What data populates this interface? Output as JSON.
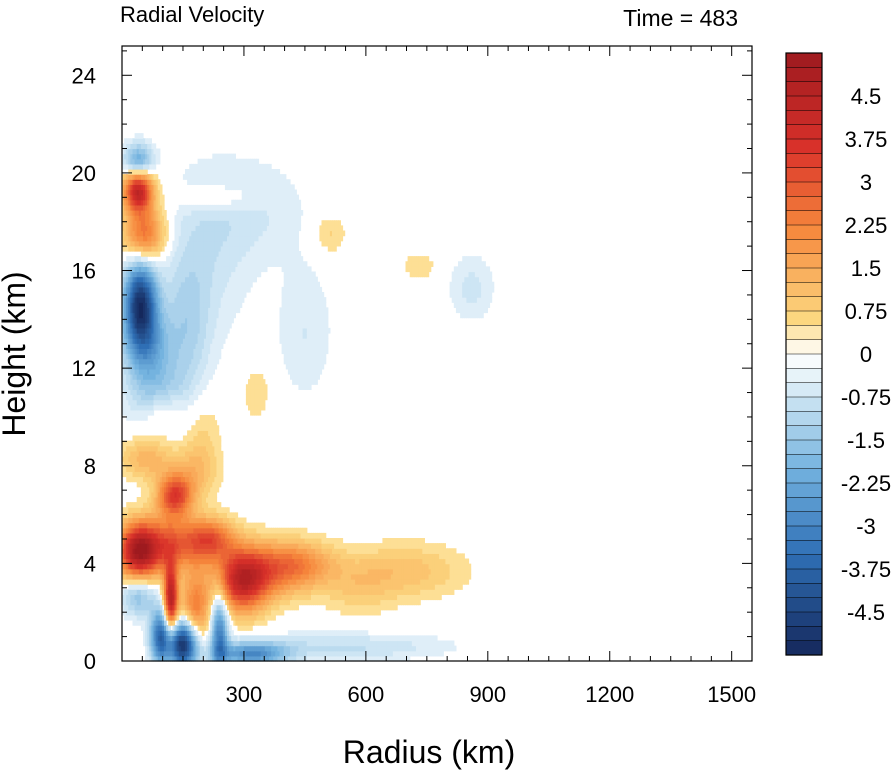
{
  "chart_data": {
    "type": "heatmap",
    "title_left": "Radial Velocity",
    "title_right": "Time = 483",
    "xlabel": "Radius (km)",
    "ylabel": "Height (km)",
    "xlim": [
      0,
      1550
    ],
    "ylim": [
      0,
      25.2
    ],
    "x_ticks": [
      300,
      600,
      900,
      1200,
      1500
    ],
    "y_ticks": [
      0,
      4,
      8,
      12,
      16,
      20,
      24
    ],
    "grid": false,
    "colorbar": {
      "min": -5.25,
      "max": 5.25,
      "step": 0.25,
      "labels": [
        "4.5",
        "3.75",
        "3",
        "2.25",
        "1.5",
        "0.75",
        "0",
        "-0.75",
        "-1.5",
        "-2.25",
        "-3",
        "-3.75",
        "-4.5"
      ],
      "label_values": [
        4.5,
        3.75,
        3,
        2.25,
        1.5,
        0.75,
        0,
        -0.75,
        -1.5,
        -2.25,
        -3,
        -3.75,
        -4.5
      ],
      "colors": {
        "max": "#9e1a1f",
        "high": "#d9312a",
        "mid_high": "#f6873c",
        "light_high": "#fcd880",
        "zero": "#ffffff",
        "light_low": "#d8ebf6",
        "mid_low": "#74b3df",
        "low": "#2f6fb5",
        "min": "#15285c"
      }
    },
    "features": [
      {
        "r": 40,
        "z": 19.3,
        "value": 4.2,
        "sr": 25,
        "sz": 0.6
      },
      {
        "r": 55,
        "z": 17.5,
        "value": 2.6,
        "sr": 35,
        "sz": 0.8
      },
      {
        "r": 40,
        "z": 20.5,
        "value": -2.2,
        "sr": 25,
        "sz": 0.5
      },
      {
        "r": 45,
        "z": 14.7,
        "value": -4.6,
        "sr": 28,
        "sz": 1.2
      },
      {
        "r": 60,
        "z": 13.0,
        "value": -1.8,
        "sr": 40,
        "sz": 1.0
      },
      {
        "r": 80,
        "z": 11.0,
        "value": -1.2,
        "sr": 50,
        "sz": 1.0
      },
      {
        "r": 100,
        "z": 10.2,
        "value": 0.8,
        "sr": 35,
        "sz": 0.6
      },
      {
        "r": 160,
        "z": 13.5,
        "value": -0.9,
        "sr": 40,
        "sz": 2.0
      },
      {
        "r": 200,
        "z": 16.5,
        "value": -0.6,
        "sr": 80,
        "sz": 2.5
      },
      {
        "r": 230,
        "z": 19.0,
        "value": 0.6,
        "sr": 70,
        "sz": 0.4
      },
      {
        "r": 320,
        "z": 18.5,
        "value": -0.5,
        "sr": 100,
        "sz": 1.5
      },
      {
        "r": 60,
        "z": 8.3,
        "value": 1.2,
        "sr": 45,
        "sz": 0.6
      },
      {
        "r": 130,
        "z": 6.8,
        "value": 3.2,
        "sr": 30,
        "sz": 0.6
      },
      {
        "r": 180,
        "z": 7.8,
        "value": 1.0,
        "sr": 40,
        "sz": 0.8
      },
      {
        "r": 200,
        "z": 9.5,
        "value": 0.5,
        "sr": 30,
        "sz": 1.0
      },
      {
        "r": 40,
        "z": 4.5,
        "value": 4.3,
        "sr": 35,
        "sz": 0.8
      },
      {
        "r": 120,
        "z": 4.8,
        "value": 2.6,
        "sr": 60,
        "sz": 0.8
      },
      {
        "r": 220,
        "z": 5.0,
        "value": 2.4,
        "sr": 40,
        "sz": 0.6
      },
      {
        "r": 295,
        "z": 3.3,
        "value": 3.8,
        "sr": 45,
        "sz": 0.9
      },
      {
        "r": 380,
        "z": 3.8,
        "value": 2.0,
        "sr": 70,
        "sz": 0.8
      },
      {
        "r": 450,
        "z": 4.0,
        "value": 1.0,
        "sr": 60,
        "sz": 0.6
      },
      {
        "r": 120,
        "z": 2.5,
        "value": 4.6,
        "sr": 12,
        "sz": 1.0
      },
      {
        "r": 180,
        "z": 2.2,
        "value": 2.2,
        "sr": 25,
        "sz": 1.0
      },
      {
        "r": 150,
        "z": 0.7,
        "value": -5.0,
        "sr": 25,
        "sz": 0.7
      },
      {
        "r": 95,
        "z": 1.0,
        "value": -3.5,
        "sr": 18,
        "sz": 0.8
      },
      {
        "r": 240,
        "z": 1.2,
        "value": -3.0,
        "sr": 15,
        "sz": 1.2
      },
      {
        "r": 320,
        "z": 0.3,
        "value": -2.6,
        "sr": 60,
        "sz": 0.35
      },
      {
        "r": 550,
        "z": 0.6,
        "value": -0.8,
        "sr": 180,
        "sz": 0.4
      },
      {
        "r": 40,
        "z": 2.7,
        "value": -1.6,
        "sr": 30,
        "sz": 0.6
      },
      {
        "r": 700,
        "z": 3.7,
        "value": 0.9,
        "sr": 100,
        "sz": 0.8
      },
      {
        "r": 580,
        "z": 3.0,
        "value": 0.6,
        "sr": 60,
        "sz": 0.8
      },
      {
        "r": 860,
        "z": 15.3,
        "value": -0.6,
        "sr": 40,
        "sz": 1.0
      },
      {
        "r": 730,
        "z": 16.2,
        "value": 0.5,
        "sr": 30,
        "sz": 0.4
      },
      {
        "r": 510,
        "z": 17.5,
        "value": 0.6,
        "sr": 30,
        "sz": 0.6
      },
      {
        "r": 330,
        "z": 11.0,
        "value": 0.5,
        "sr": 25,
        "sz": 0.8
      },
      {
        "r": 450,
        "z": 13.5,
        "value": -0.5,
        "sr": 50,
        "sz": 2.0
      }
    ]
  }
}
